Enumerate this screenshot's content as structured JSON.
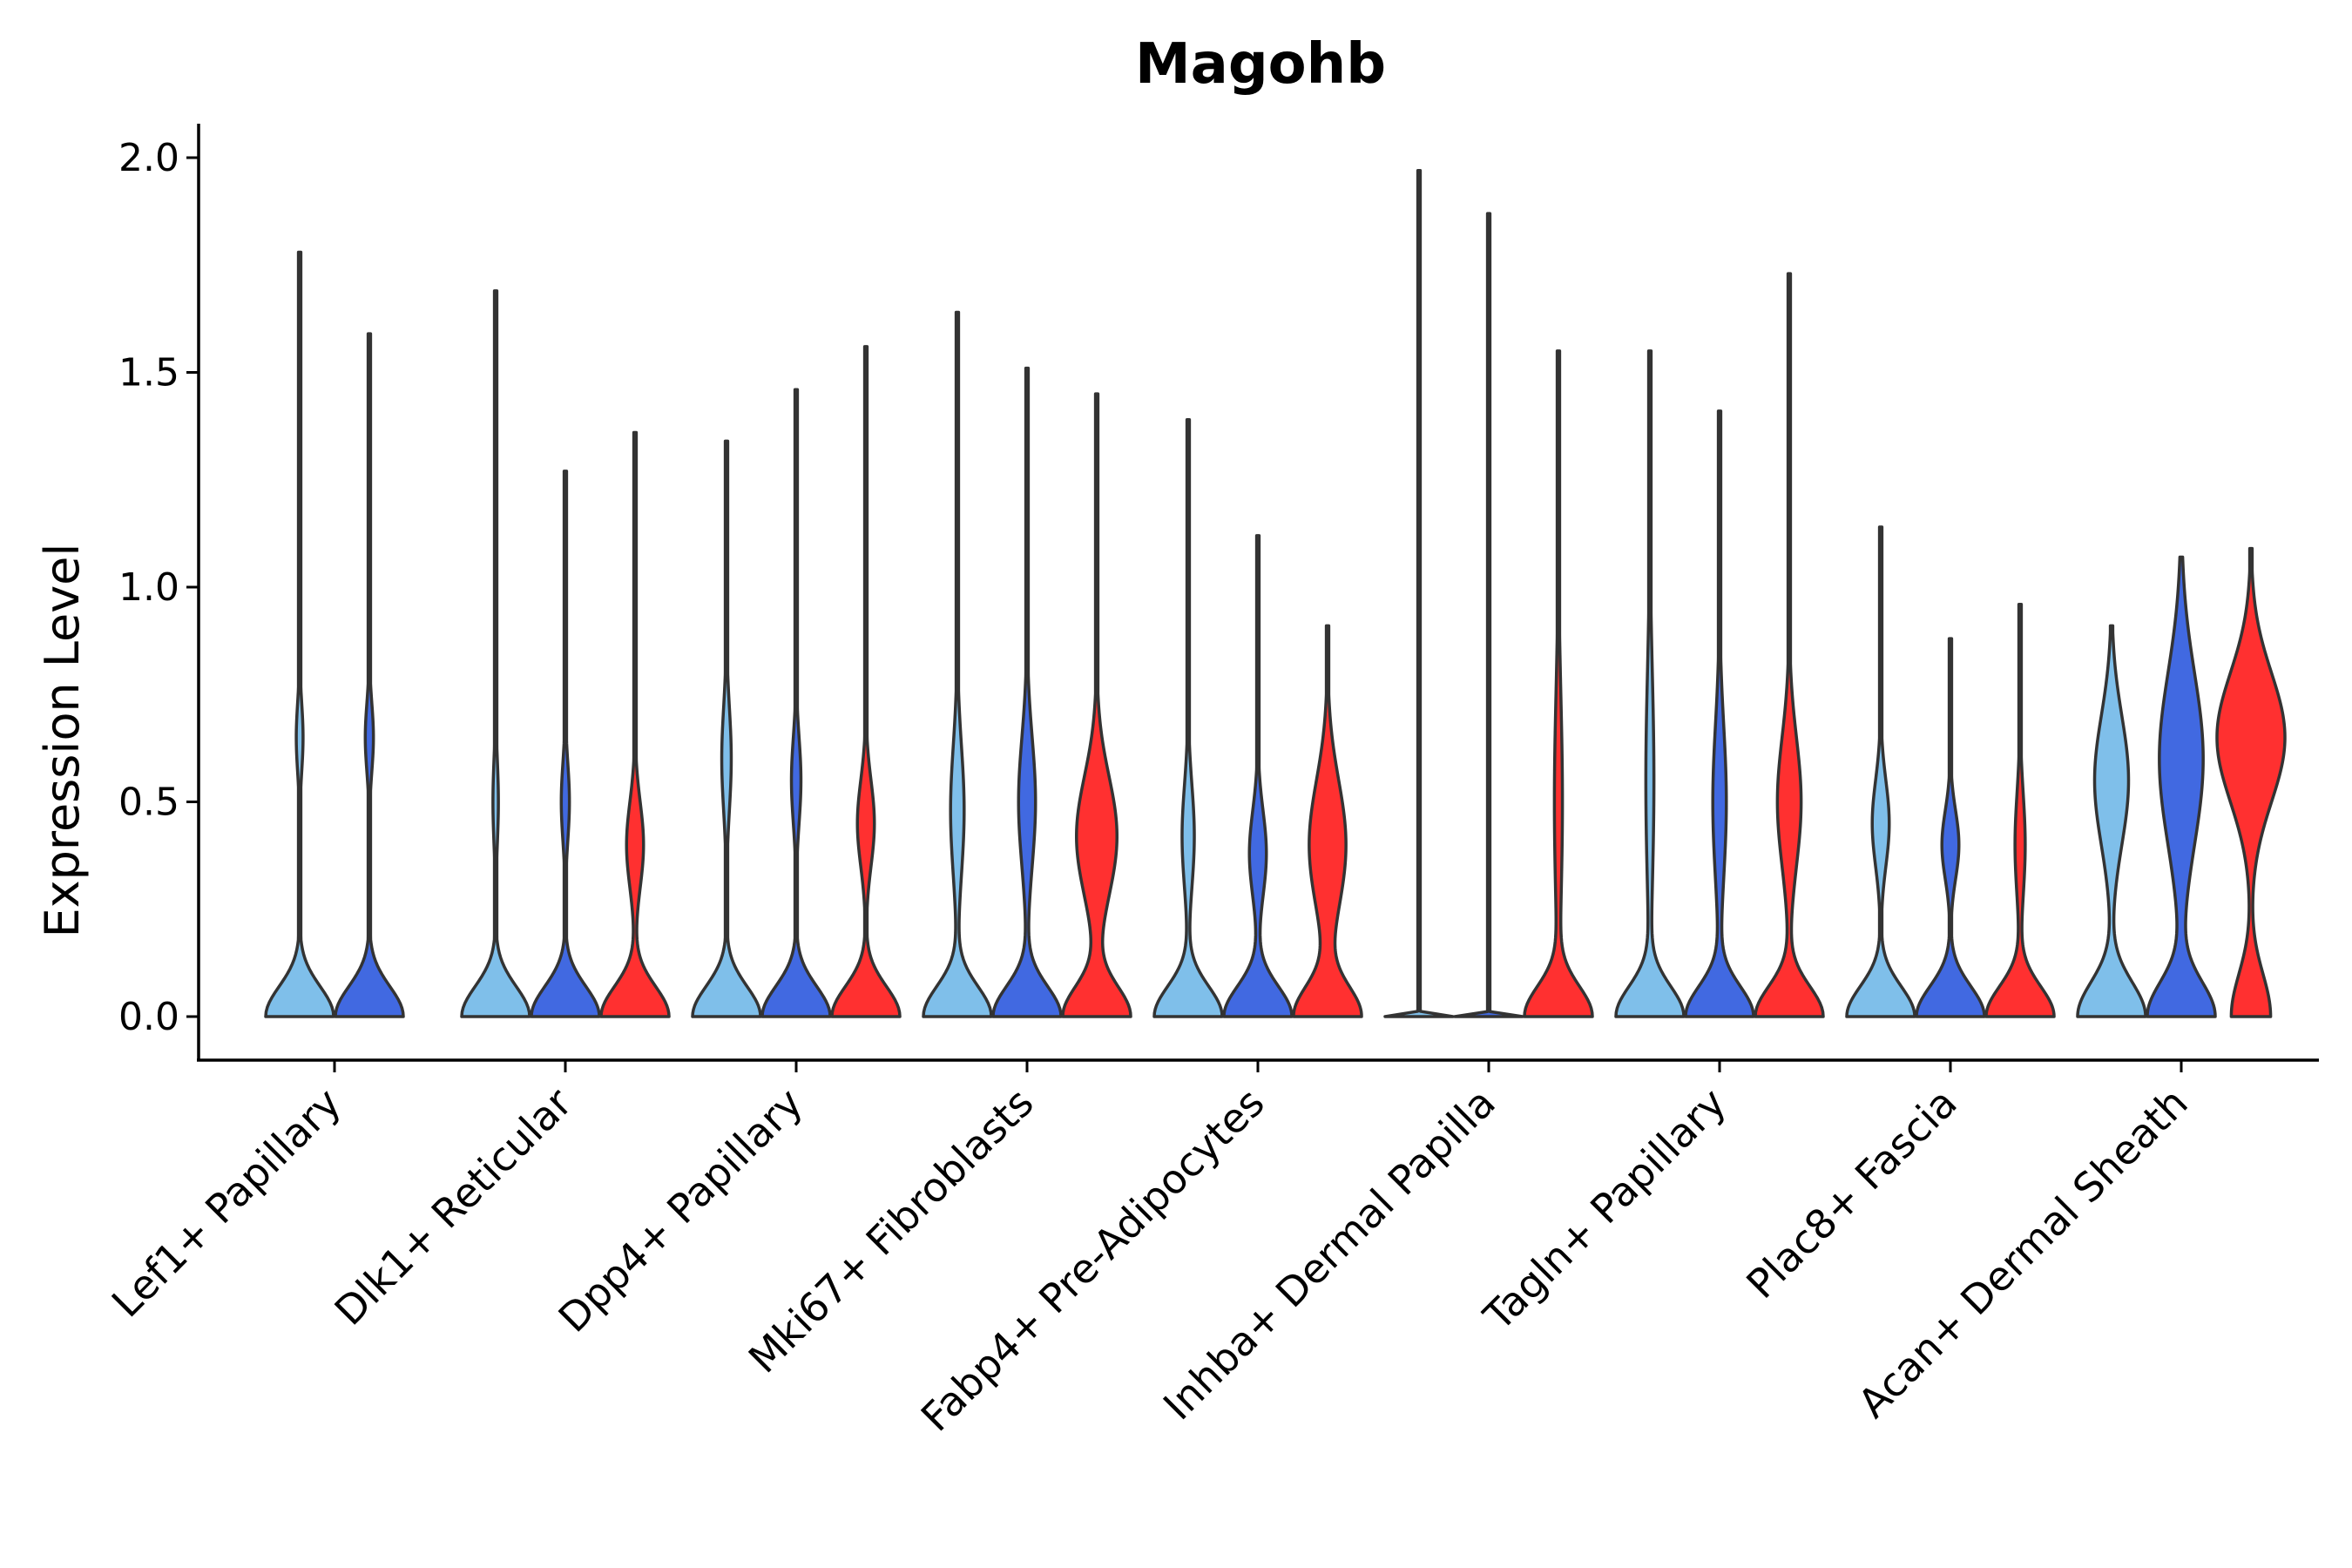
{
  "chart_data": {
    "type": "violin",
    "title": "Magohb",
    "xlabel": "",
    "ylabel": "Expression Level",
    "ylim": [
      -0.1,
      2.1
    ],
    "yticks": [
      0.0,
      0.5,
      1.0,
      1.5,
      2.0
    ],
    "ytick_labels": [
      "0.0",
      "0.5",
      "1.0",
      "1.5",
      "2.0"
    ],
    "legend": "none",
    "colors": [
      "#7fbfea",
      "#4169e1",
      "#ff3030"
    ],
    "categories": [
      "Lef1+ Papillary",
      "Dlk1+ Reticular",
      "Dpp4+ Papillary",
      "Mki67+ Fibroblasts",
      "Fabp4+ Pre-Adipocytes",
      "Inhba+ Dermal Papilla",
      "Tagln+ Papillary",
      "Plac8+ Fascia",
      "Acan+ Dermal Sheath"
    ],
    "groups": [
      {
        "violins": [
          {
            "color_index": 0,
            "max": 1.78,
            "modes": [
              [
                0.0,
                1.0,
                0.07
              ],
              [
                0.65,
                0.1,
                0.08
              ]
            ]
          },
          {
            "color_index": 1,
            "max": 1.59,
            "modes": [
              [
                0.0,
                1.0,
                0.07
              ],
              [
                0.65,
                0.12,
                0.08
              ]
            ]
          }
        ]
      },
      {
        "violins": [
          {
            "color_index": 0,
            "max": 1.69,
            "modes": [
              [
                0.0,
                1.0,
                0.07
              ],
              [
                0.5,
                0.08,
                0.1
              ]
            ]
          },
          {
            "color_index": 1,
            "max": 1.27,
            "modes": [
              [
                0.0,
                1.0,
                0.07
              ],
              [
                0.5,
                0.12,
                0.09
              ]
            ]
          },
          {
            "color_index": 2,
            "max": 1.36,
            "modes": [
              [
                0.0,
                1.0,
                0.07
              ],
              [
                0.4,
                0.25,
                0.1
              ]
            ]
          }
        ]
      },
      {
        "violins": [
          {
            "color_index": 0,
            "max": 1.34,
            "modes": [
              [
                0.0,
                1.0,
                0.07
              ],
              [
                0.6,
                0.14,
                0.12
              ]
            ]
          },
          {
            "color_index": 1,
            "max": 1.46,
            "modes": [
              [
                0.0,
                1.0,
                0.07
              ],
              [
                0.55,
                0.14,
                0.1
              ]
            ]
          },
          {
            "color_index": 2,
            "max": 1.56,
            "modes": [
              [
                0.0,
                1.0,
                0.07
              ],
              [
                0.45,
                0.25,
                0.1
              ]
            ]
          }
        ]
      },
      {
        "violins": [
          {
            "color_index": 0,
            "max": 1.64,
            "modes": [
              [
                0.0,
                1.0,
                0.07
              ],
              [
                0.48,
                0.2,
                0.15
              ]
            ]
          },
          {
            "color_index": 1,
            "max": 1.51,
            "modes": [
              [
                0.0,
                1.0,
                0.07
              ],
              [
                0.5,
                0.25,
                0.15
              ]
            ]
          },
          {
            "color_index": 2,
            "max": 1.45,
            "modes": [
              [
                0.0,
                1.0,
                0.07
              ],
              [
                0.42,
                0.6,
                0.14
              ]
            ]
          }
        ]
      },
      {
        "violins": [
          {
            "color_index": 0,
            "max": 1.39,
            "modes": [
              [
                0.0,
                1.0,
                0.07
              ],
              [
                0.42,
                0.18,
                0.12
              ]
            ]
          },
          {
            "color_index": 1,
            "max": 1.12,
            "modes": [
              [
                0.0,
                1.0,
                0.07
              ],
              [
                0.38,
                0.25,
                0.1
              ]
            ]
          },
          {
            "color_index": 2,
            "max": 0.91,
            "modes": [
              [
                0.0,
                1.0,
                0.07
              ],
              [
                0.4,
                0.55,
                0.15
              ]
            ]
          }
        ]
      },
      {
        "violins": [
          {
            "color_index": 0,
            "max": 1.97,
            "modes": [
              [
                0.0,
                1.0,
                0.002
              ]
            ]
          },
          {
            "color_index": 1,
            "max": 1.87,
            "modes": [
              [
                0.0,
                1.0,
                0.002
              ]
            ]
          },
          {
            "color_index": 2,
            "max": 1.55,
            "modes": [
              [
                0.0,
                1.0,
                0.07
              ],
              [
                0.5,
                0.12,
                0.25
              ]
            ]
          }
        ]
      },
      {
        "violins": [
          {
            "color_index": 0,
            "max": 1.55,
            "modes": [
              [
                0.0,
                1.0,
                0.07
              ],
              [
                0.55,
                0.12,
                0.25
              ]
            ]
          },
          {
            "color_index": 1,
            "max": 1.41,
            "modes": [
              [
                0.0,
                1.0,
                0.07
              ],
              [
                0.5,
                0.2,
                0.18
              ]
            ]
          },
          {
            "color_index": 2,
            "max": 1.73,
            "modes": [
              [
                0.0,
                1.0,
                0.07
              ],
              [
                0.5,
                0.35,
                0.15
              ]
            ]
          }
        ]
      },
      {
        "violins": [
          {
            "color_index": 0,
            "max": 1.14,
            "modes": [
              [
                0.0,
                1.0,
                0.07
              ],
              [
                0.45,
                0.25,
                0.1
              ]
            ]
          },
          {
            "color_index": 1,
            "max": 0.88,
            "modes": [
              [
                0.0,
                1.0,
                0.07
              ],
              [
                0.4,
                0.25,
                0.08
              ]
            ]
          },
          {
            "color_index": 2,
            "max": 0.96,
            "modes": [
              [
                0.0,
                1.0,
                0.07
              ],
              [
                0.4,
                0.15,
                0.12
              ]
            ]
          }
        ]
      },
      {
        "violins": [
          {
            "color_index": 0,
            "max": 0.91,
            "modes": [
              [
                0.0,
                1.0,
                0.08
              ],
              [
                0.55,
                0.5,
                0.15
              ]
            ]
          },
          {
            "color_index": 1,
            "max": 1.07,
            "modes": [
              [
                0.0,
                1.0,
                0.08
              ],
              [
                0.6,
                0.65,
                0.2
              ]
            ]
          },
          {
            "color_index": 2,
            "max": 1.09,
            "modes": [
              [
                0.0,
                0.55,
                0.1
              ],
              [
                0.65,
                0.95,
                0.15
              ]
            ]
          }
        ]
      }
    ]
  }
}
